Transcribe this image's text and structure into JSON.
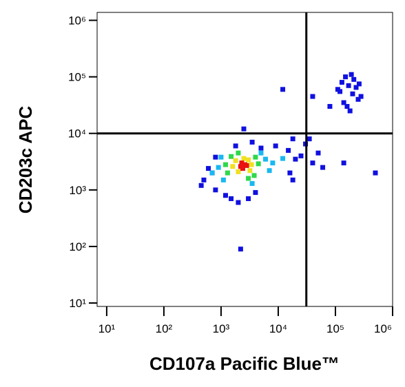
{
  "chart_data": {
    "type": "scatter",
    "x_label": "CD107a Pacific Blue™",
    "y_label": "CD203c APC",
    "x_scale": "log",
    "y_scale": "log",
    "xlim": [
      6.8,
      1000000
    ],
    "ylim": [
      8.7,
      1380000
    ],
    "xticks": [
      {
        "value": 10,
        "label": "10¹"
      },
      {
        "value": 100,
        "label": "10²"
      },
      {
        "value": 1000,
        "label": "10³"
      },
      {
        "value": 10000,
        "label": "10⁴"
      },
      {
        "value": 100000,
        "label": "10⁵"
      },
      {
        "value": 1000000,
        "label": "10⁶"
      }
    ],
    "yticks": [
      {
        "value": 10,
        "label": "10¹"
      },
      {
        "value": 100,
        "label": "10²"
      },
      {
        "value": 1000,
        "label": "10³"
      },
      {
        "value": 10000,
        "label": "10⁴"
      },
      {
        "value": 100000,
        "label": "10⁵"
      },
      {
        "value": 1000000,
        "label": "10⁶"
      }
    ],
    "gates": {
      "x": 31000,
      "y": 10000
    },
    "series": [
      {
        "color": "#1010e0",
        "x": [
          500,
          600,
          450,
          800,
          1200,
          1500,
          2000,
          3000,
          4000,
          5000,
          9000,
          15000,
          20000,
          25000,
          30000,
          40000,
          50000,
          60000,
          800,
          1800,
          35000,
          700,
          3500,
          16000,
          18000,
          2500,
          110000,
          130000,
          150000,
          170000,
          200000,
          250000,
          140000,
          190000,
          230000,
          280000,
          120000,
          160000,
          210000,
          260000,
          180000,
          500000,
          140000,
          40000,
          2200,
          80000,
          12000,
          18000
        ],
        "values": [
          1500,
          2400,
          1200,
          1000,
          800,
          700,
          600,
          700,
          900,
          5500,
          6000,
          5000,
          3500,
          4000,
          6500,
          3000,
          4500,
          2500,
          3800,
          6000,
          8000,
          2000,
          7000,
          2000,
          8000,
          12000,
          60000,
          80000,
          100000,
          70000,
          50000,
          40000,
          35000,
          110000,
          65000,
          45000,
          55000,
          30000,
          90000,
          75000,
          25000,
          2000,
          3000,
          45000,
          90,
          30000,
          60000,
          1500
        ]
      },
      {
        "color": "#19b8f0",
        "x": [
          900,
          6000,
          1100,
          5000,
          8000,
          1000,
          3500,
          7000,
          12000,
          700
        ],
        "values": [
          2500,
          3500,
          1500,
          4500,
          3000,
          3800,
          1300,
          2200,
          3600,
          2000
        ]
      },
      {
        "color": "#2fd84a",
        "x": [
          1300,
          4000,
          1500,
          3800,
          2000,
          3000,
          1200,
          4500
        ],
        "values": [
          2000,
          3800,
          3900,
          1800,
          4500,
          1600,
          2800,
          2900
        ]
      },
      {
        "color": "#f0e020",
        "x": [
          1800,
          3200,
          2000,
          3000,
          2500,
          1600,
          3400
        ],
        "values": [
          3300,
          2200,
          2100,
          3400,
          3600,
          2600,
          2800
        ]
      },
      {
        "color": "#e81010",
        "x": [
          2200,
          2600,
          2400,
          2800,
          2300
        ],
        "values": [
          2600,
          2800,
          2400,
          2700,
          3000
        ]
      }
    ]
  }
}
